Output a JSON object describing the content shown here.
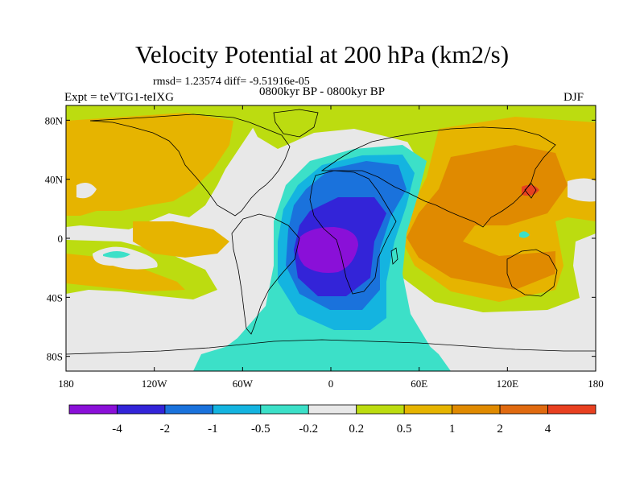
{
  "title": "Velocity Potential at 200 hPa (km2/s)",
  "stats_line": "rmsd= 1.23574 diff= -9.51916e-05",
  "experiment_label": "Expt = teVTG1-teIXG",
  "period_label": "0800kyr BP - 0800kyr BP",
  "season_label": "DJF",
  "map": {
    "projection": "cylindrical-equidistant",
    "lon_range": [
      -180,
      180
    ],
    "lat_range": [
      -90,
      90
    ],
    "x_ticks": [
      {
        "value": -180,
        "label": "180"
      },
      {
        "value": -120,
        "label": "120W"
      },
      {
        "value": -60,
        "label": "60W"
      },
      {
        "value": 0,
        "label": "0"
      },
      {
        "value": 60,
        "label": "60E"
      },
      {
        "value": 120,
        "label": "120E"
      },
      {
        "value": 180,
        "label": "180"
      }
    ],
    "y_ticks": [
      {
        "value": 80,
        "label": "80N"
      },
      {
        "value": 40,
        "label": "40N"
      },
      {
        "value": 0,
        "label": "0"
      },
      {
        "value": -40,
        "label": "40S"
      },
      {
        "value": -80,
        "label": "80S"
      }
    ]
  },
  "colorbar": {
    "colors": [
      "#8a10d8",
      "#3324d8",
      "#1a72dc",
      "#14b4e0",
      "#3ce0c8",
      "#e8e8e8",
      "#bcdc10",
      "#e6b400",
      "#e08a00",
      "#e06a10",
      "#e84020"
    ],
    "labels": [
      "-4",
      "-2",
      "-1",
      "-0.5",
      "-0.2",
      "0.2",
      "0.5",
      "1",
      "2",
      "4"
    ]
  },
  "colors": {
    "background_field": "#e8e8e8",
    "coastline": "#000000"
  }
}
